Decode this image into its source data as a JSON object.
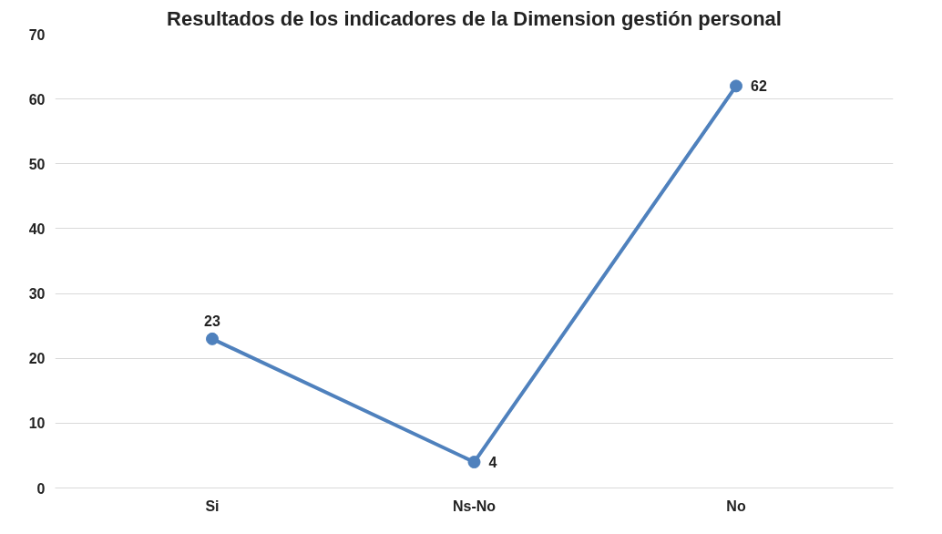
{
  "chart_data": {
    "type": "line",
    "title": "Resultados de los indicadores de la Dimension gestión personal",
    "categories": [
      "Si",
      "Ns-No",
      "No"
    ],
    "series": [
      {
        "color": "#4f81bd",
        "values": [
          23,
          4,
          62
        ]
      }
    ],
    "ylim": [
      0,
      70
    ],
    "yticks": [
      0,
      10,
      20,
      30,
      40,
      50,
      60,
      70
    ],
    "grid": "y",
    "data_labels": true,
    "marker": "circle",
    "line_style": "solid"
  }
}
